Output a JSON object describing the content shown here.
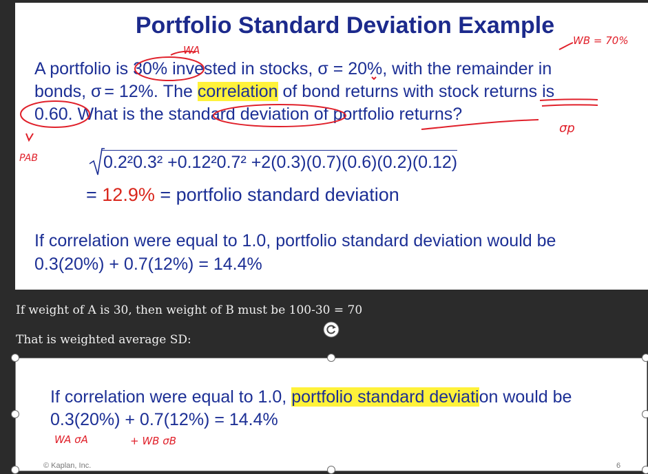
{
  "slide": {
    "title": "Portfolio Standard Deviation Example",
    "line1_a": "A portfolio is 30% invested in stocks, σ = 20%, with the remainder in",
    "line2_a": "bonds, σ",
    "line2_b": "= 12%. The ",
    "line2_hl": "correlation",
    "line2_c": " of bond returns with stock returns is",
    "line3": "0.60. What is the standard deviation of portfolio returns?",
    "formula": "0.2²0.3² +0.12²0.7² +2(0.3)(0.7)(0.6)(0.2)(0.12)",
    "result_eq": "= ",
    "result_value": "12.9%",
    "result_text": " = portfolio standard deviation",
    "if_line1": "If correlation were equal to 1.0, portfolio standard deviation would be",
    "if_line2": "0.3(20%) + 0.7(12%) = 14.4%"
  },
  "annotations": {
    "wa": "WA",
    "wb_eq": "WB = 70%",
    "rho": "PAB",
    "sigma_p": "σp",
    "wa_sa": "WA σA",
    "wb_sb": "+ WB σB"
  },
  "notes": {
    "line1": "If weight of A is 30, then weight of B must be 100-30 = 70",
    "line2": "That is weighted average SD:"
  },
  "crop": {
    "line1_a": "If correlation were equal to 1.0, ",
    "line1_hl": "portfolio standard deviati",
    "line1_b": "on would be",
    "line2": "0.3(20%) + 0.7(12%) = 14.4%",
    "footer_left": "© Kaplan, Inc.",
    "footer_right": "6"
  },
  "colors": {
    "title": "#1c2a8c",
    "text": "#1c2f95",
    "ink": "#e0202a",
    "highlight": "#fff23a",
    "background": "#2b2b2b"
  },
  "icons": [
    "rotate-handle-icon",
    "resize-handle-icon"
  ]
}
